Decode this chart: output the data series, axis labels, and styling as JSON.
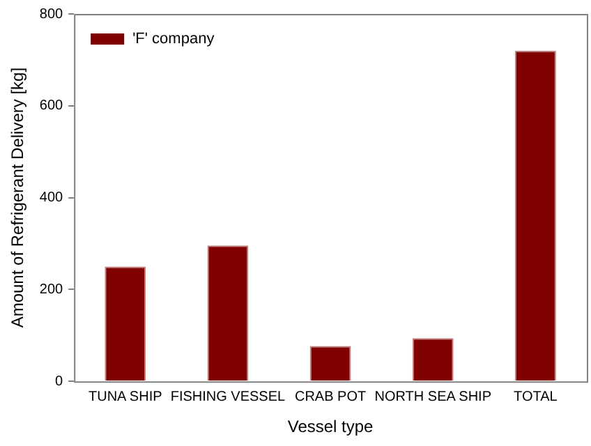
{
  "chart_data": {
    "type": "bar",
    "xlabel": "Vessel type",
    "ylabel": "Amount of Refrigerant Delivery [kg]",
    "categories": [
      "TUNA SHIP",
      "FISHING VESSEL",
      "CRAB POT",
      "NORTH SEA SHIP",
      "TOTAL"
    ],
    "series": [
      {
        "name": "'F' company",
        "color": "#800000",
        "values": [
          250,
          296,
          77,
          94,
          720
        ]
      }
    ],
    "ylim": [
      0,
      800
    ],
    "yticks": [
      0,
      200,
      400,
      600,
      800
    ],
    "grid": false,
    "legend": "top left"
  }
}
